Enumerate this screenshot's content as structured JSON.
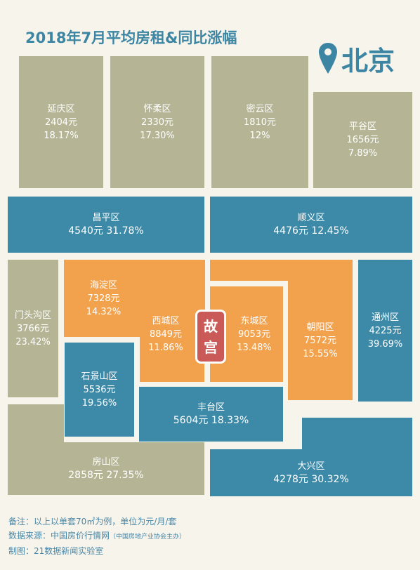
{
  "title": "2018年7月平均房租&同比涨幅",
  "city": {
    "name": "北京",
    "icon": "location-pin-icon"
  },
  "colors": {
    "gray": "#b5b494",
    "teal": "#3d8aa8",
    "orange": "#f2a24d",
    "red": "#c95a58",
    "title": "#3d86a3"
  },
  "districts": {
    "yanqing": {
      "name": "延庆区",
      "rent": "2404元",
      "growth": "18.17%"
    },
    "huairou": {
      "name": "怀柔区",
      "rent": "2330元",
      "growth": "17.30%"
    },
    "miyun": {
      "name": "密云区",
      "rent": "1810元",
      "growth": "12%"
    },
    "pinggu": {
      "name": "平谷区",
      "rent": "1656元",
      "growth": "7.89%"
    },
    "changping": {
      "name": "昌平区",
      "line": "4540元 31.78%"
    },
    "shunyi": {
      "name": "顺义区",
      "line": "4476元 12.45%"
    },
    "mentougou": {
      "name": "门头沟区",
      "rent": "3766元",
      "growth": "23.42%"
    },
    "haidian": {
      "name": "海淀区",
      "rent": "7328元",
      "growth": "14.32%"
    },
    "xicheng": {
      "name": "西城区",
      "rent": "8849元",
      "growth": "11.86%"
    },
    "dongcheng": {
      "name": "东城区",
      "rent": "9053元",
      "growth": "13.48%"
    },
    "chaoyang": {
      "name": "朝阳区",
      "rent": "7572元",
      "growth": "15.55%"
    },
    "tongzhou": {
      "name": "通州区",
      "rent": "4225元",
      "growth": "39.69%"
    },
    "shijingshan": {
      "name": "石景山区",
      "rent": "5536元",
      "growth": "19.56%"
    },
    "fengtai": {
      "name": "丰台区",
      "line": "5604元 18.33%"
    },
    "fangshan": {
      "name": "房山区",
      "line": "2858元 27.35%"
    },
    "daxing": {
      "name": "大兴区",
      "line": "4278元 30.32%"
    }
  },
  "gugong": {
    "char1": "故",
    "char2": "宫"
  },
  "footer": {
    "note": "备注：以上以单套70㎡为例，单位为元/月/套",
    "source_label": "数据来源：中国房价行情网",
    "source_sub": "（中国房地产业协会主办）",
    "credit": "制图：21数据新闻实验室"
  }
}
